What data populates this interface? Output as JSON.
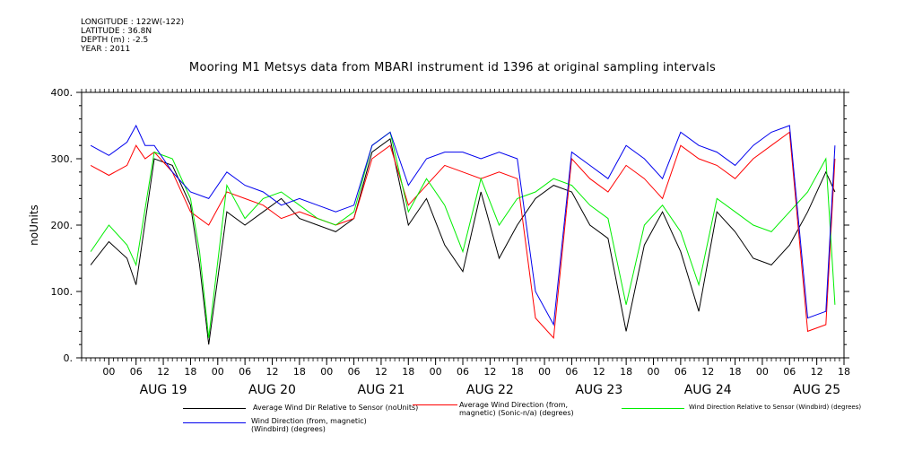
{
  "header": {
    "longitude": "LONGITUDE : 122W(-122)",
    "latitude": "LATITUDE : 36.8N",
    "depth": "DEPTH (m) : -2.5",
    "year": "YEAR : 2011"
  },
  "chart_data": {
    "type": "line",
    "title": "Mooring M1 Metsys data from MBARI instrument id 1396 at original sampling intervals",
    "ylabel": "noUnits",
    "ylim": [
      0,
      400
    ],
    "yticks": [
      "0.",
      "100.",
      "200.",
      "300.",
      "400."
    ],
    "xlim_hours": [
      -6,
      162
    ],
    "hour_tick_labels": [
      "00",
      "06",
      "12",
      "18",
      "00",
      "06",
      "12",
      "18",
      "00",
      "06",
      "12",
      "18",
      "00",
      "06",
      "12",
      "18",
      "00",
      "06",
      "12",
      "18",
      "00",
      "06",
      "12",
      "18",
      "00",
      "06",
      "12",
      "18"
    ],
    "day_labels": [
      "AUG 19",
      "AUG 20",
      "AUG 21",
      "AUG 22",
      "AUG 23",
      "AUG 24",
      "AUG 25"
    ],
    "series": [
      {
        "name": "Average Wind Dir Relative to Sensor (noUnits)",
        "color": "#000000",
        "x": [
          -4,
          0,
          4,
          6,
          10,
          14,
          18,
          20,
          22,
          26,
          30,
          34,
          38,
          42,
          46,
          50,
          54,
          58,
          62,
          66,
          70,
          74,
          78,
          82,
          86,
          90,
          94,
          98,
          102,
          106,
          110,
          114,
          118,
          122,
          126,
          130,
          134,
          138,
          142,
          146,
          150,
          154,
          158,
          160
        ],
        "y": [
          140,
          175,
          150,
          110,
          300,
          290,
          230,
          140,
          20,
          220,
          200,
          220,
          240,
          210,
          200,
          190,
          210,
          310,
          330,
          200,
          240,
          170,
          130,
          250,
          150,
          200,
          240,
          260,
          250,
          200,
          180,
          40,
          170,
          220,
          160,
          70,
          220,
          190,
          150,
          140,
          170,
          220,
          280,
          250
        ]
      },
      {
        "name": "Average Wind Direction (from, magnetic) (Sonic-n/a) (degrees)",
        "color": "#ff0000",
        "x": [
          -4,
          0,
          4,
          6,
          8,
          10,
          14,
          18,
          22,
          26,
          30,
          34,
          38,
          42,
          46,
          50,
          54,
          58,
          62,
          66,
          70,
          74,
          78,
          82,
          86,
          90,
          94,
          98,
          102,
          106,
          110,
          114,
          118,
          122,
          126,
          130,
          134,
          138,
          142,
          146,
          150,
          154,
          158,
          160
        ],
        "y": [
          290,
          275,
          290,
          320,
          300,
          310,
          280,
          220,
          200,
          250,
          240,
          230,
          210,
          220,
          210,
          200,
          210,
          300,
          320,
          230,
          260,
          290,
          280,
          270,
          280,
          270,
          60,
          30,
          300,
          270,
          250,
          290,
          270,
          240,
          320,
          300,
          290,
          270,
          300,
          320,
          340,
          40,
          50,
          300
        ]
      },
      {
        "name": "Wind Direction Relative to Sensor (Windbird) (degrees)",
        "color": "#00ee00",
        "x": [
          -4,
          0,
          4,
          6,
          10,
          14,
          18,
          20,
          22,
          26,
          30,
          34,
          38,
          42,
          46,
          50,
          54,
          58,
          62,
          66,
          70,
          74,
          78,
          82,
          86,
          90,
          94,
          98,
          102,
          106,
          110,
          114,
          118,
          122,
          126,
          130,
          134,
          138,
          142,
          146,
          150,
          154,
          158,
          160
        ],
        "y": [
          160,
          200,
          170,
          140,
          310,
          300,
          240,
          160,
          30,
          260,
          210,
          240,
          250,
          230,
          210,
          200,
          220,
          320,
          340,
          220,
          270,
          230,
          160,
          270,
          200,
          240,
          250,
          270,
          260,
          230,
          210,
          80,
          200,
          230,
          190,
          110,
          240,
          220,
          200,
          190,
          220,
          250,
          300,
          80
        ]
      },
      {
        "name": "Wind Direction (from, magnetic) (Windbird) (degrees)",
        "color": "#0000ee",
        "x": [
          -4,
          0,
          4,
          6,
          8,
          10,
          14,
          18,
          22,
          26,
          30,
          34,
          38,
          42,
          46,
          50,
          54,
          58,
          62,
          66,
          70,
          74,
          78,
          82,
          86,
          90,
          94,
          98,
          102,
          106,
          110,
          114,
          118,
          122,
          126,
          130,
          134,
          138,
          142,
          146,
          150,
          154,
          158,
          160
        ],
        "y": [
          320,
          305,
          325,
          350,
          320,
          320,
          280,
          250,
          240,
          280,
          260,
          250,
          230,
          240,
          230,
          220,
          230,
          320,
          340,
          260,
          300,
          310,
          310,
          300,
          310,
          300,
          100,
          50,
          310,
          290,
          270,
          320,
          300,
          270,
          340,
          320,
          310,
          290,
          320,
          340,
          350,
          60,
          70,
          320
        ]
      }
    ]
  }
}
